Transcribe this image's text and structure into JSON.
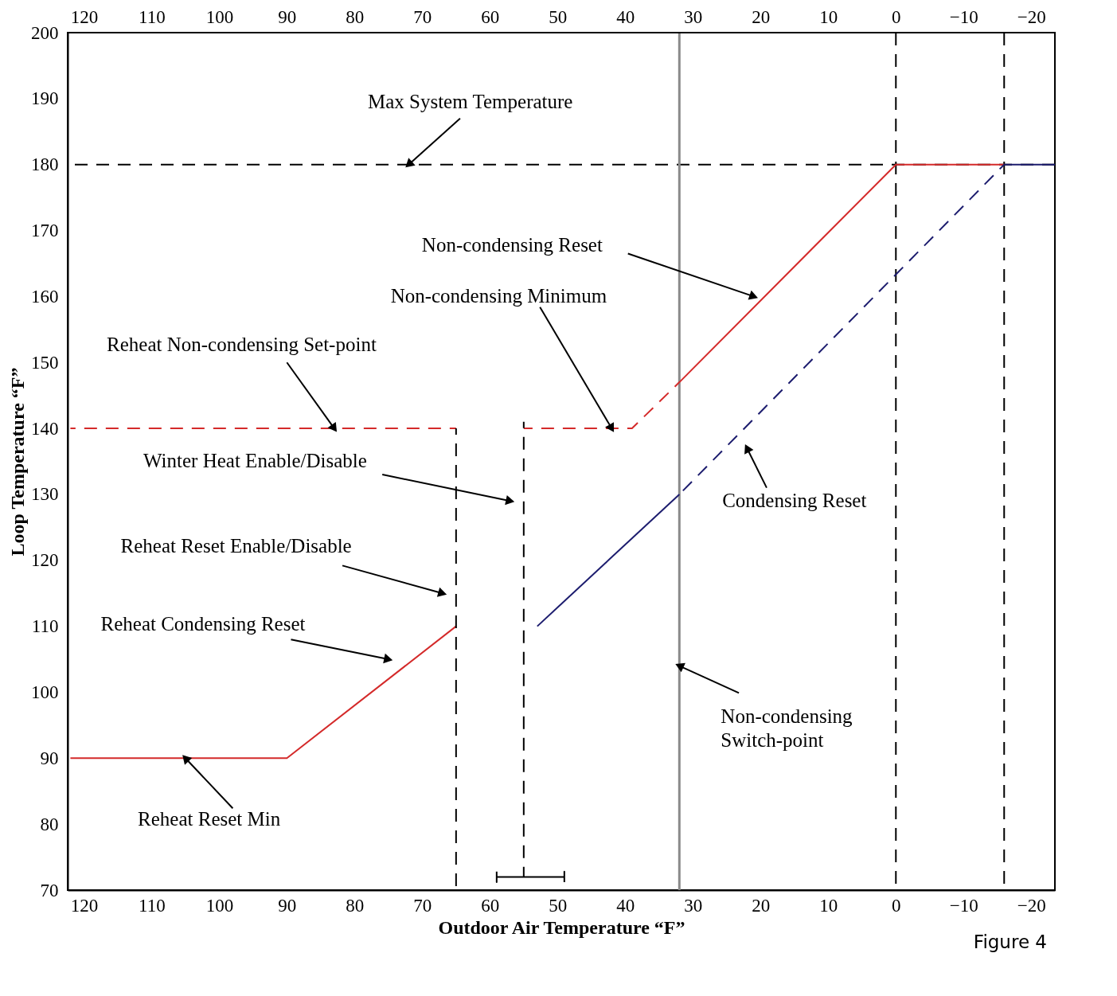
{
  "chart_data": {
    "type": "line",
    "xlabel": "Outdoor Air Temperature “F”",
    "ylabel": "Loop Temperature “F”",
    "xlim": [
      122.4,
      -23.5
    ],
    "ylim": [
      70,
      200
    ],
    "xticks": [
      120,
      110,
      100,
      90,
      80,
      70,
      60,
      50,
      40,
      30,
      20,
      10,
      0,
      -10,
      -20
    ],
    "x2lim": [
      122.4,
      -23.5
    ],
    "x2ticks": [
      120,
      110,
      100,
      90,
      80,
      70,
      60,
      50,
      40,
      30,
      20,
      10,
      0,
      -10,
      -20
    ],
    "yticks": [
      70,
      80,
      90,
      100,
      110,
      120,
      130,
      140,
      150,
      160,
      170,
      180,
      190,
      200
    ],
    "grid": false,
    "marker": "none",
    "series": [
      {
        "color": "#d42a2a",
        "line_style": "solid",
        "x": [
          122,
          90,
          65
        ],
        "values": [
          90,
          90,
          110
        ]
      },
      {
        "color": "#d42a2a",
        "line_style": "dashed",
        "x": [
          122,
          65
        ],
        "values": [
          140,
          140
        ]
      },
      {
        "color": "#d42a2a",
        "line_style": "dashed",
        "x": [
          55,
          39,
          32
        ],
        "values": [
          140,
          140,
          147
        ]
      },
      {
        "color": "#d42a2a",
        "line_style": "solid",
        "x": [
          32,
          0,
          -16
        ],
        "values": [
          147,
          180,
          180
        ]
      },
      {
        "color": "#1c1c6e",
        "line_style": "solid",
        "x": [
          53,
          32
        ],
        "values": [
          110,
          130
        ]
      },
      {
        "color": "#1c1c6e",
        "line_style": "dashed",
        "x": [
          32,
          -16
        ],
        "values": [
          130,
          180
        ]
      },
      {
        "color": "#1c1c6e",
        "line_style": "solid",
        "x": [
          -16,
          -23.5
        ],
        "values": [
          180,
          180
        ]
      },
      {
        "color": "#000000",
        "line_style": "dashed",
        "x": [
          65,
          65
        ],
        "values": [
          70,
          140
        ]
      },
      {
        "color": "#000000",
        "line_style": "dashed",
        "x": [
          55,
          55
        ],
        "values": [
          72,
          141
        ]
      },
      {
        "color": "#000000",
        "line_style": "solid",
        "x": [
          59,
          59,
          59,
          49,
          49,
          49
        ],
        "values": [
          72.8,
          71.2,
          72,
          72,
          72.8,
          71.2
        ]
      }
    ],
    "ref_lines": [
      {
        "axis": "y",
        "value": 180,
        "color": "#000000",
        "line_style": "dashed"
      },
      {
        "axis": "x",
        "value": 32,
        "color": "#8a8a8a",
        "line_style": "solid"
      },
      {
        "axis": "x",
        "value": 0,
        "color": "#000000",
        "line_style": "dashed"
      },
      {
        "axis": "x",
        "value": -16,
        "color": "#000000",
        "line_style": "dashed"
      }
    ],
    "annotations": [
      {
        "text": "Max System Temperature",
        "x": 72,
        "y": 180
      },
      {
        "text": "Non-condensing Reset",
        "x": 21,
        "y": 160
      },
      {
        "text": "Non-condensing Minimum",
        "x": 42,
        "y": 140
      },
      {
        "text": "Reheat Non-condensing Set-point",
        "x": 83,
        "y": 140
      },
      {
        "text": "Winter Heat Enable/Disable",
        "x": 57,
        "y": 129
      },
      "Condensing Reset",
      {
        "text": "Reheat Reset Enable/Disable",
        "x": 67,
        "y": 115
      },
      {
        "text": "Reheat Condensing Reset",
        "x": 75,
        "y": 105
      },
      {
        "text": "Non-condensing Switch-point",
        "x": 32,
        "y": 104
      },
      {
        "text": "Reheat Reset Min",
        "x": 105,
        "y": 90
      },
      "Figure 4"
    ]
  }
}
